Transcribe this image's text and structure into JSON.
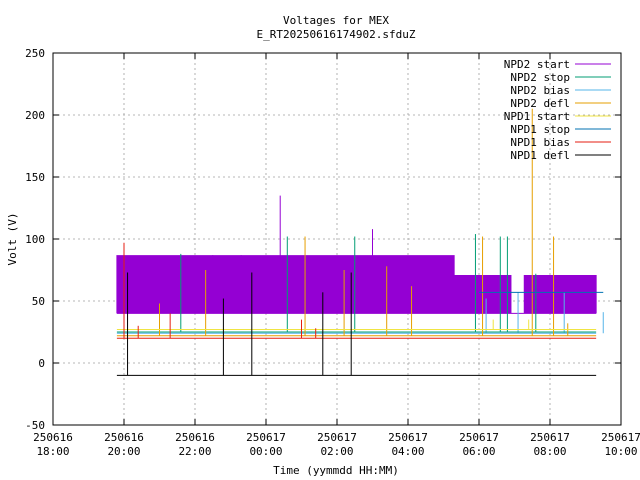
{
  "chart_data": {
    "type": "line",
    "title": "Voltages for MEX",
    "subtitle": "E_RT20250616174902.sfduZ",
    "xlabel": "Time (yymmdd HH:MM)",
    "ylabel": "Volt (V)",
    "xlim_hours": [
      18,
      34
    ],
    "ylim": [
      -50,
      250
    ],
    "yticks": [
      -50,
      0,
      50,
      100,
      150,
      200,
      250
    ],
    "xticks": [
      {
        "hour": 18,
        "date": "250616",
        "time": "18:00"
      },
      {
        "hour": 20,
        "date": "250616",
        "time": "20:00"
      },
      {
        "hour": 22,
        "date": "250616",
        "time": "22:00"
      },
      {
        "hour": 24,
        "date": "250617",
        "time": "00:00"
      },
      {
        "hour": 26,
        "date": "250617",
        "time": "02:00"
      },
      {
        "hour": 28,
        "date": "250617",
        "time": "04:00"
      },
      {
        "hour": 30,
        "date": "250617",
        "time": "06:00"
      },
      {
        "hour": 32,
        "date": "250617",
        "time": "08:00"
      },
      {
        "hour": 34,
        "date": "250617",
        "time": "10:00"
      }
    ],
    "grid": true,
    "legend_position": "top-right",
    "series": [
      {
        "name": "NPD2 start",
        "color": "#9400d3",
        "baseline": 40,
        "high": 87,
        "high_end": 30.9,
        "low": 40,
        "from": 19.8,
        "to": 33.3,
        "alt_high": 71,
        "alt_from": 29.3,
        "spikes": [
          [
            22.5,
            87
          ],
          [
            23.3,
            87
          ],
          [
            24.4,
            135
          ],
          [
            27.0,
            108
          ]
        ]
      },
      {
        "name": "NPD2 stop",
        "color": "#009e73",
        "baseline": 25,
        "from": 19.8,
        "to": 33.3,
        "spikes": [
          [
            21.6,
            88
          ],
          [
            24.6,
            102
          ],
          [
            26.5,
            102
          ],
          [
            29.9,
            104
          ],
          [
            30.6,
            102
          ],
          [
            30.8,
            102
          ],
          [
            31.6,
            72
          ]
        ]
      },
      {
        "name": "NPD2 bias",
        "color": "#56b4e9",
        "baseline": 24,
        "from": 19.8,
        "to": 33.3,
        "spikes": [
          [
            30.2,
            52
          ],
          [
            31.1,
            57
          ],
          [
            32.4,
            57
          ],
          [
            33.5,
            41
          ]
        ]
      },
      {
        "name": "NPD2 defl",
        "color": "#e69f00",
        "baseline": 22,
        "from": 19.8,
        "to": 33.3,
        "spikes": [
          [
            21.0,
            48
          ],
          [
            22.3,
            75
          ],
          [
            25.1,
            102
          ],
          [
            26.2,
            75
          ],
          [
            27.4,
            78
          ],
          [
            28.1,
            62
          ],
          [
            30.1,
            102
          ],
          [
            31.5,
            205
          ],
          [
            32.1,
            102
          ],
          [
            32.5,
            32
          ]
        ]
      },
      {
        "name": "NPD1 start",
        "color": "#f0e442",
        "baseline": 27,
        "from": 19.8,
        "to": 33.3,
        "spikes": [
          [
            30.4,
            35
          ],
          [
            31.4,
            35
          ]
        ]
      },
      {
        "name": "NPD1 stop",
        "color": "#0072b2",
        "baseline": 57,
        "from": 30.0,
        "to": 33.5,
        "spikes": [
          [
            30.3,
            57
          ],
          [
            30.9,
            57
          ],
          [
            31.8,
            57
          ],
          [
            32.6,
            57
          ]
        ]
      },
      {
        "name": "NPD1 bias",
        "color": "#e51e10",
        "baseline": 20,
        "from": 19.8,
        "to": 33.3,
        "spikes": [
          [
            20.0,
            97
          ],
          [
            20.4,
            30
          ],
          [
            21.3,
            40
          ],
          [
            25.0,
            35
          ],
          [
            25.4,
            28
          ]
        ]
      },
      {
        "name": "NPD1 defl",
        "color": "#000000",
        "baseline": -10,
        "from": 19.8,
        "to": 33.3,
        "spikes": [
          [
            20.1,
            73
          ],
          [
            22.8,
            52
          ],
          [
            23.6,
            73
          ],
          [
            25.6,
            57
          ],
          [
            26.4,
            73
          ]
        ]
      }
    ]
  }
}
